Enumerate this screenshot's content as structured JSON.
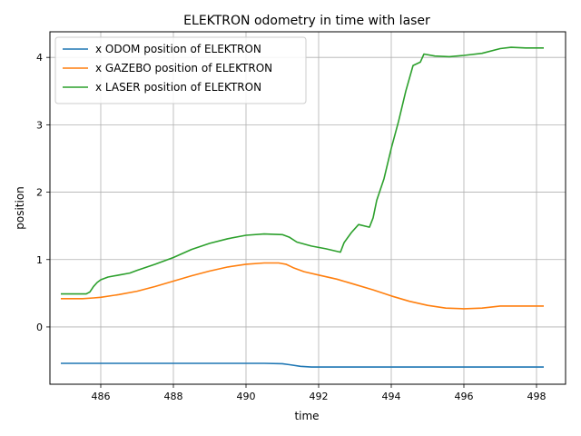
{
  "chart_data": {
    "type": "line",
    "title": "ELEKTRON odometry in time with laser",
    "xlabel": "time",
    "ylabel": "position",
    "xlim": [
      484.6,
      498.8
    ],
    "ylim": [
      -0.85,
      4.38
    ],
    "xticks": [
      486,
      488,
      490,
      492,
      494,
      496,
      498
    ],
    "yticks": [
      0,
      1,
      2,
      3,
      4
    ],
    "grid": true,
    "legend_position": "top-left",
    "series": [
      {
        "name": "x ODOM position of ELEKTRON",
        "color": "#1f77b4",
        "points": [
          [
            484.9,
            -0.54
          ],
          [
            486.0,
            -0.54
          ],
          [
            487.0,
            -0.54
          ],
          [
            488.0,
            -0.54
          ],
          [
            489.0,
            -0.54
          ],
          [
            490.0,
            -0.54
          ],
          [
            490.5,
            -0.54
          ],
          [
            491.0,
            -0.545
          ],
          [
            491.2,
            -0.56
          ],
          [
            491.5,
            -0.585
          ],
          [
            491.8,
            -0.595
          ],
          [
            492.0,
            -0.595
          ],
          [
            493.0,
            -0.595
          ],
          [
            494.0,
            -0.595
          ],
          [
            495.0,
            -0.595
          ],
          [
            496.0,
            -0.595
          ],
          [
            497.0,
            -0.595
          ],
          [
            498.2,
            -0.595
          ]
        ]
      },
      {
        "name": "x GAZEBO position of ELEKTRON",
        "color": "#ff7f0e",
        "points": [
          [
            484.9,
            0.42
          ],
          [
            485.5,
            0.42
          ],
          [
            485.8,
            0.43
          ],
          [
            486.0,
            0.44
          ],
          [
            486.5,
            0.48
          ],
          [
            487.0,
            0.53
          ],
          [
            487.5,
            0.6
          ],
          [
            488.0,
            0.68
          ],
          [
            488.5,
            0.76
          ],
          [
            489.0,
            0.83
          ],
          [
            489.5,
            0.89
          ],
          [
            490.0,
            0.93
          ],
          [
            490.5,
            0.95
          ],
          [
            490.9,
            0.95
          ],
          [
            491.1,
            0.93
          ],
          [
            491.3,
            0.88
          ],
          [
            491.6,
            0.82
          ],
          [
            492.0,
            0.77
          ],
          [
            492.5,
            0.71
          ],
          [
            493.0,
            0.63
          ],
          [
            493.5,
            0.55
          ],
          [
            494.0,
            0.46
          ],
          [
            494.5,
            0.38
          ],
          [
            495.0,
            0.32
          ],
          [
            495.5,
            0.28
          ],
          [
            496.0,
            0.27
          ],
          [
            496.5,
            0.28
          ],
          [
            497.0,
            0.31
          ],
          [
            497.5,
            0.31
          ],
          [
            498.2,
            0.31
          ]
        ]
      },
      {
        "name": "x LASER position of ELEKTRON",
        "color": "#2ca02c",
        "points": [
          [
            484.9,
            0.49
          ],
          [
            485.6,
            0.49
          ],
          [
            485.7,
            0.52
          ],
          [
            485.8,
            0.6
          ],
          [
            485.9,
            0.66
          ],
          [
            486.0,
            0.7
          ],
          [
            486.2,
            0.74
          ],
          [
            486.5,
            0.77
          ],
          [
            486.8,
            0.8
          ],
          [
            487.0,
            0.84
          ],
          [
            487.5,
            0.93
          ],
          [
            488.0,
            1.03
          ],
          [
            488.5,
            1.15
          ],
          [
            489.0,
            1.24
          ],
          [
            489.5,
            1.31
          ],
          [
            490.0,
            1.36
          ],
          [
            490.5,
            1.38
          ],
          [
            491.0,
            1.37
          ],
          [
            491.2,
            1.33
          ],
          [
            491.4,
            1.26
          ],
          [
            491.8,
            1.2
          ],
          [
            492.2,
            1.16
          ],
          [
            492.6,
            1.11
          ],
          [
            492.7,
            1.25
          ],
          [
            492.9,
            1.4
          ],
          [
            493.1,
            1.52
          ],
          [
            493.4,
            1.48
          ],
          [
            493.5,
            1.62
          ],
          [
            493.6,
            1.88
          ],
          [
            493.8,
            2.2
          ],
          [
            494.0,
            2.65
          ],
          [
            494.2,
            3.05
          ],
          [
            494.4,
            3.5
          ],
          [
            494.6,
            3.88
          ],
          [
            494.8,
            3.93
          ],
          [
            494.9,
            4.05
          ],
          [
            495.2,
            4.02
          ],
          [
            495.6,
            4.01
          ],
          [
            496.0,
            4.03
          ],
          [
            496.5,
            4.06
          ],
          [
            497.0,
            4.13
          ],
          [
            497.3,
            4.15
          ],
          [
            497.7,
            4.14
          ],
          [
            498.2,
            4.14
          ]
        ]
      }
    ]
  }
}
